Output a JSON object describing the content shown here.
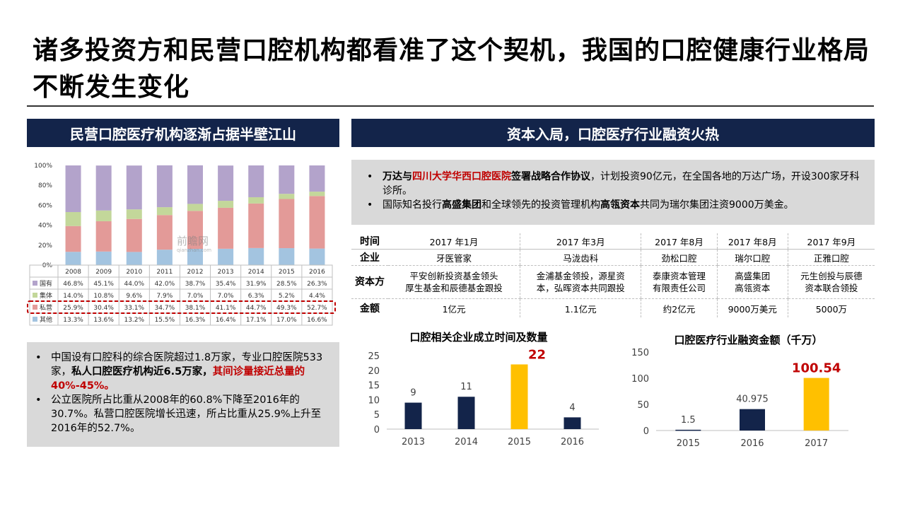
{
  "page_title": "诸多投资方和民营口腔机构都看准了这个契机，我国的口腔健康行业格局不断发生变化",
  "left_banner": "民营口腔医疗机构逐渐占据半壁江山",
  "right_banner": "资本入局，口腔医疗行业融资火热",
  "watermark": {
    "cn": "前瞻网",
    "en": "qianzhan.com"
  },
  "left_bullets": [
    {
      "parts": [
        {
          "t": "中国设有口腔科的综合医院超过1.8万家，专业口腔医院533家，",
          "s": ""
        },
        {
          "t": "私人口腔医疗机构近6.5万家，",
          "s": "b"
        },
        {
          "t": "其间诊量接近总量的40%-45%。",
          "s": "b red"
        }
      ]
    },
    {
      "parts": [
        {
          "t": "公立医院所占比重从2008年的60.8%下降至2016年的30.7%。私营口腔医院增长迅速，所占比重从25.9%上升至2016年的52.7%。",
          "s": ""
        }
      ]
    }
  ],
  "right_bullets": [
    {
      "parts": [
        {
          "t": "万达与",
          "s": "b"
        },
        {
          "t": "四川大学华西口腔医院",
          "s": "b red"
        },
        {
          "t": "签署战略合作协议",
          "s": "b"
        },
        {
          "t": "，计划投资90亿元，在全国各地的万达广场，开设300家牙科诊所。",
          "s": ""
        }
      ]
    },
    {
      "parts": [
        {
          "t": "国际知名投行",
          "s": ""
        },
        {
          "t": "高盛集团",
          "s": "b"
        },
        {
          "t": "和全球领先的投资管理机构",
          "s": ""
        },
        {
          "t": "高瓴资本",
          "s": "b"
        },
        {
          "t": "共同为瑞尔集团注资9000万美金。",
          "s": ""
        }
      ]
    }
  ],
  "deals_table": {
    "row_headers": [
      "时间",
      "企业",
      "资本方",
      "金额"
    ],
    "columns": [
      {
        "time": "2017 年1月",
        "company": "牙医管家",
        "investors": [
          "平安创新投资基金领头",
          "厚生基金和辰德基金跟投"
        ],
        "amount": "1亿元"
      },
      {
        "time": "2017 年3月",
        "company": "马泷齿科",
        "investors": [
          "金浦基金领投，源星资",
          "本，弘晖资本共同跟投"
        ],
        "amount": "1.1亿元"
      },
      {
        "time": "2017 年8月",
        "company": "劲松口腔",
        "investors": [
          "泰康资本管理",
          "有限责任公司"
        ],
        "amount": "约2亿元"
      },
      {
        "time": "2017 年8月",
        "company": "瑞尔口腔",
        "investors": [
          "高盛集团",
          "高瓴资本"
        ],
        "amount": "9000万美元"
      },
      {
        "time": "2017 年9月",
        "company": "正雅口腔",
        "investors": [
          "元生创投与辰德",
          "资本联合领投"
        ],
        "amount": "5000万"
      }
    ]
  },
  "chart_data": [
    {
      "type": "bar",
      "stacked": true,
      "categories": [
        "2008",
        "2009",
        "2010",
        "2011",
        "2012",
        "2013",
        "2014",
        "2015",
        "2016"
      ],
      "series": [
        {
          "name": "其他",
          "values": [
            13.3,
            13.6,
            13.2,
            15.5,
            16.3,
            16.4,
            17.1,
            17.0,
            16.6
          ],
          "labels": [
            "13.3%",
            "13.6%",
            "13.2%",
            "15.5%",
            "16.3%",
            "16.4%",
            "17.1%",
            "17.0%",
            "16.6%"
          ],
          "color": "#a3c4e0"
        },
        {
          "name": "私营",
          "values": [
            25.9,
            30.4,
            33.1,
            34.7,
            38.1,
            41.1,
            44.7,
            49.3,
            52.7
          ],
          "labels": [
            "25.9%",
            "30.4%",
            "33.1%",
            "34.7%",
            "38.1%",
            "41.1%",
            "44.7%",
            "49.3%",
            "52.7%"
          ],
          "color": "#e39a98"
        },
        {
          "name": "集体",
          "values": [
            14.0,
            10.8,
            9.6,
            7.9,
            7.0,
            7.0,
            6.3,
            5.2,
            4.4
          ],
          "labels": [
            "14.0%",
            "10.8%",
            "9.6%",
            "7.9%",
            "7.0%",
            "7.0%",
            "6.3%",
            "5.2%",
            "4.4%"
          ],
          "color": "#c3d79a"
        },
        {
          "name": "国有",
          "values": [
            46.8,
            45.1,
            44.0,
            42.0,
            38.7,
            35.4,
            31.9,
            28.5,
            26.3
          ],
          "labels": [
            "46.8%",
            "45.1%",
            "44.0%",
            "42.0%",
            "38.7%",
            "35.4%",
            "31.9%",
            "28.5%",
            "26.3%"
          ],
          "color": "#b3a3cb"
        }
      ],
      "ylim": [
        0,
        100
      ],
      "yticks": [
        "0%",
        "20%",
        "40%",
        "60%",
        "80%",
        "100%"
      ],
      "highlight_row": "私营",
      "highlight_color": "#c00000"
    },
    {
      "type": "bar",
      "title": "口腔相关企业成立时间及数量",
      "categories": [
        "2013",
        "2014",
        "2015",
        "2016"
      ],
      "values": [
        9,
        11,
        22,
        4
      ],
      "ylim": [
        0,
        25
      ],
      "yticks": [
        0,
        5,
        10,
        15,
        20,
        25
      ],
      "highlight_index": 2,
      "bar_color": "#13244a",
      "highlight_color": "#ffc000",
      "highlight_label_color": "#c00000"
    },
    {
      "type": "bar",
      "title": "口腔医疗行业融资金额（千万）",
      "categories": [
        "2015",
        "2016",
        "2017"
      ],
      "values": [
        1.5,
        40.975,
        100.54
      ],
      "value_labels": [
        "1.5",
        "40.975",
        "100.54"
      ],
      "ylim": [
        0,
        150
      ],
      "yticks": [
        0,
        50,
        100,
        150
      ],
      "highlight_index": 2,
      "bar_color": "#13244a",
      "highlight_color": "#ffc000",
      "highlight_label_color": "#c00000"
    }
  ]
}
